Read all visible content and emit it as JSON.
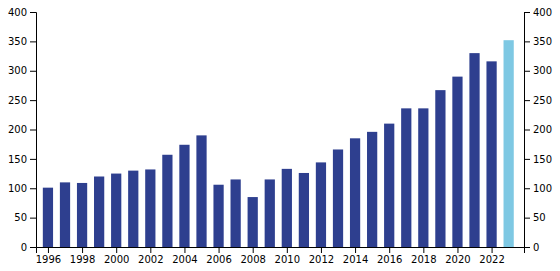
{
  "chart_data": {
    "type": "bar",
    "x": [
      1996,
      1997,
      1998,
      1999,
      2000,
      2001,
      2002,
      2003,
      2004,
      2005,
      2006,
      2007,
      2008,
      2009,
      2010,
      2011,
      2012,
      2013,
      2014,
      2015,
      2016,
      2017,
      2018,
      2019,
      2020,
      2021,
      2022,
      2023
    ],
    "values": [
      101,
      110,
      109,
      120,
      125,
      130,
      132,
      157,
      174,
      190,
      106,
      115,
      85,
      115,
      133,
      126,
      144,
      166,
      185,
      196,
      210,
      236,
      236,
      267,
      290,
      330,
      316,
      352
    ],
    "colors": [
      "#2e3f8f",
      "#2e3f8f",
      "#2e3f8f",
      "#2e3f8f",
      "#2e3f8f",
      "#2e3f8f",
      "#2e3f8f",
      "#2e3f8f",
      "#2e3f8f",
      "#2e3f8f",
      "#2e3f8f",
      "#2e3f8f",
      "#2e3f8f",
      "#2e3f8f",
      "#2e3f8f",
      "#2e3f8f",
      "#2e3f8f",
      "#2e3f8f",
      "#2e3f8f",
      "#2e3f8f",
      "#2e3f8f",
      "#2e3f8f",
      "#2e3f8f",
      "#2e3f8f",
      "#2e3f8f",
      "#2e3f8f",
      "#2e3f8f",
      "#7ec8e3"
    ],
    "xlim": [
      1995.3,
      2023.9
    ],
    "xticks": [
      1996,
      1998,
      2000,
      2002,
      2004,
      2006,
      2008,
      2010,
      2012,
      2014,
      2016,
      2018,
      2020,
      2022
    ],
    "ylim": [
      0,
      400
    ],
    "yticks": [
      0,
      50,
      100,
      150,
      200,
      250,
      300,
      350,
      400
    ],
    "y2lim": [
      0,
      400
    ],
    "y2ticks": [
      0,
      50,
      100,
      150,
      200,
      250,
      300,
      350,
      400
    ],
    "grid": false
  }
}
